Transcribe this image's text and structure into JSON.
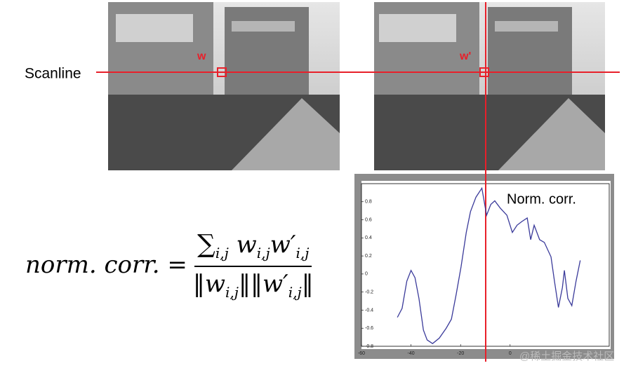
{
  "slide": {
    "scanline_label": "Scanline",
    "w_label": "w",
    "w_prime_label": "w'",
    "formula": {
      "lhs": "norm. corr. =",
      "sum": "∑",
      "sum_index": "i,j",
      "w": "w",
      "w_index": "i,j",
      "w_prime": "w′",
      "w_prime_index": "i,j"
    },
    "watermark": "@稀土掘金技术社区"
  },
  "chart_data": {
    "type": "line",
    "annotation": "Norm. corr.",
    "x": [
      -45.5,
      -43.6,
      -41.7,
      -40,
      -38.4,
      -36.8,
      -35,
      -33.5,
      -31.3,
      -28.6,
      -25.8,
      -23.7,
      -21.8,
      -19.8,
      -17.7,
      -16,
      -13.8,
      -11.4,
      -9.5,
      -7.8,
      -6.2,
      -4,
      -1.3,
      0.9,
      2.8,
      4.7,
      6.9,
      8.3,
      9.7,
      11.9,
      13.8,
      16.5,
      17.9,
      19.5,
      21.1,
      21.9,
      23.3,
      24.9,
      26.6,
      28.3
    ],
    "series": [
      {
        "color": "#3a3a9a",
        "values": [
          -0.48,
          -0.38,
          -0.08,
          0.04,
          -0.04,
          -0.27,
          -0.62,
          -0.73,
          -0.77,
          -0.71,
          -0.6,
          -0.5,
          -0.23,
          0.08,
          0.46,
          0.69,
          0.85,
          0.95,
          0.65,
          0.77,
          0.81,
          0.73,
          0.65,
          0.46,
          0.54,
          0.58,
          0.62,
          0.38,
          0.54,
          0.38,
          0.35,
          0.19,
          -0.08,
          -0.37,
          -0.15,
          0.04,
          -0.27,
          -0.35,
          -0.08,
          0.15
        ]
      }
    ],
    "xlim": [
      -60,
      40
    ],
    "xticks": [
      -60,
      -40,
      -20,
      0
    ],
    "ylim": [
      -0.8,
      1.0
    ],
    "yticks": [
      -0.8,
      -0.6,
      -0.4,
      -0.2,
      0,
      0.2,
      0.4,
      0.6,
      0.8
    ]
  }
}
